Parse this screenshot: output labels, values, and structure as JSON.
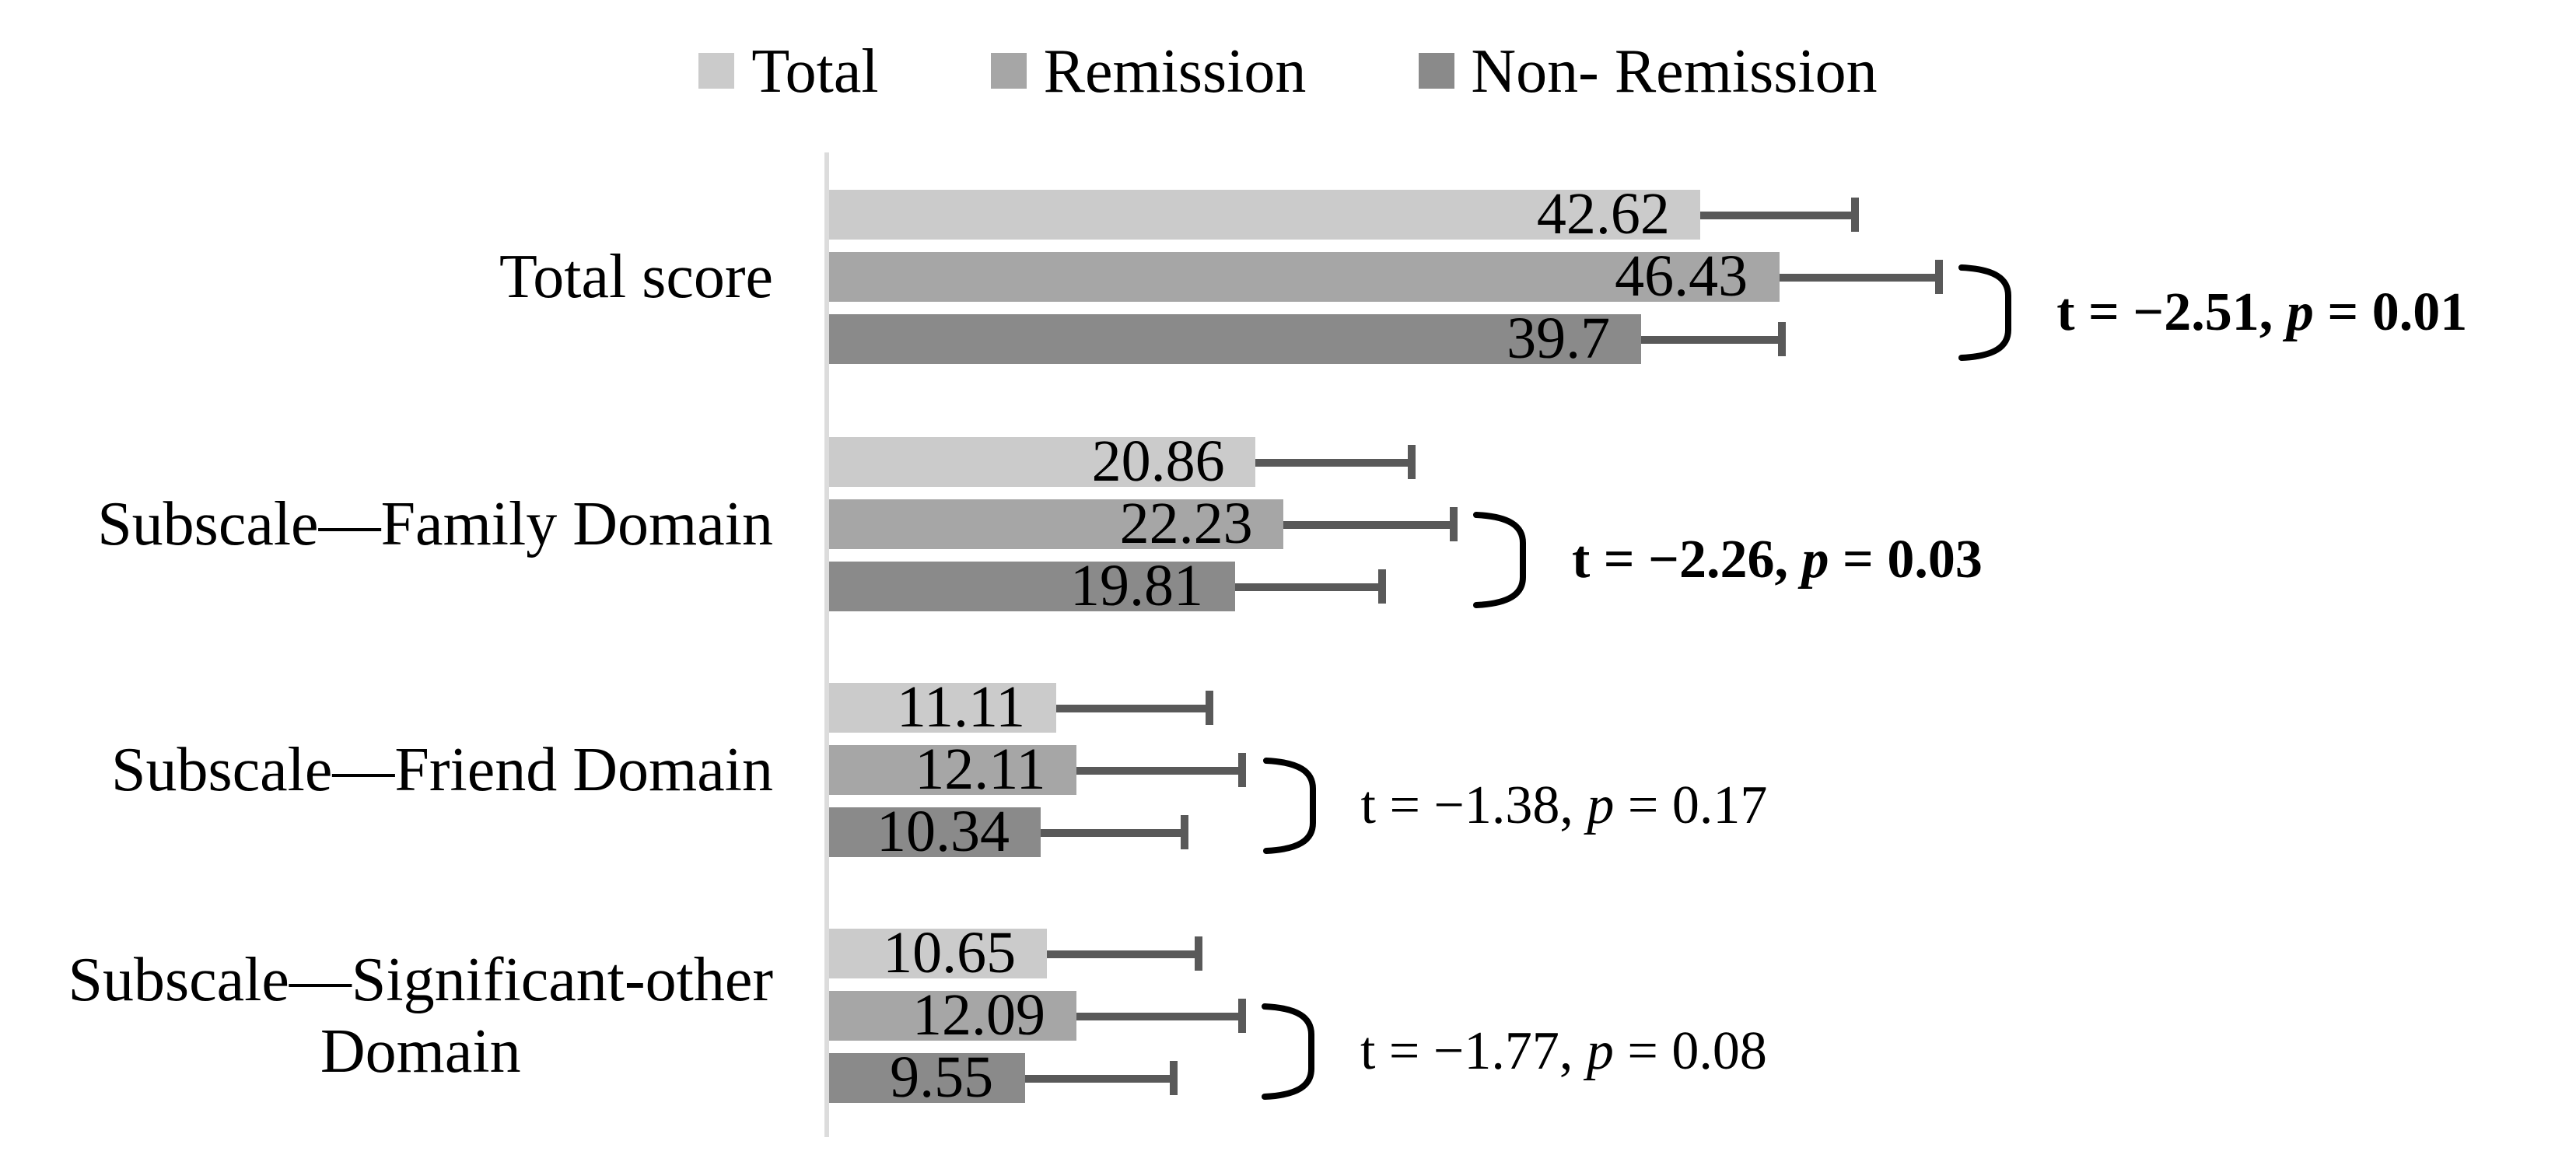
{
  "figure": {
    "background": "#ffffff",
    "axis_color": "#dcdcdc",
    "error_bar_color": "#595959",
    "bracket_color": "#000000"
  },
  "chart_data": {
    "type": "bar",
    "orientation": "horizontal",
    "title": "",
    "xlabel": "",
    "ylabel": "",
    "xlim": [
      0,
      60
    ],
    "grid": false,
    "legend_position": "top",
    "error_bars": "plus_side_only",
    "series": [
      {
        "name": "Total",
        "color": "#cbcbcb"
      },
      {
        "name": "Remission",
        "color": "#a6a6a6"
      },
      {
        "name": "Non- Remission",
        "color": "#8a8a8a"
      }
    ],
    "categories": [
      "Total score",
      "Subscale—Family Domain",
      "Subscale—Friend Domain",
      "Subscale—Significant-other Domain"
    ],
    "groups": [
      {
        "category_lines": [
          "Total score"
        ],
        "values": [
          42.62,
          46.43,
          39.7
        ],
        "labels": [
          "42.62",
          "46.43",
          "39.7"
        ],
        "errors": [
          7.5,
          7.8,
          6.9
        ],
        "stat": {
          "text": "t = −2.51, p = 0.01",
          "t": "−2.51",
          "p": "0.01",
          "bold": true
        }
      },
      {
        "category_lines": [
          "Subscale—Family Domain"
        ],
        "values": [
          20.86,
          22.23,
          19.81
        ],
        "labels": [
          "20.86",
          "22.23",
          "19.81"
        ],
        "errors": [
          7.6,
          8.3,
          7.2
        ],
        "stat": {
          "text": "t = −2.26, p = 0.03",
          "t": "−2.26",
          "p": "0.03",
          "bold": true
        }
      },
      {
        "category_lines": [
          "Subscale—Friend Domain"
        ],
        "values": [
          11.11,
          12.11,
          10.34
        ],
        "labels": [
          "11.11",
          "12.11",
          "10.34"
        ],
        "errors": [
          7.5,
          8.1,
          7.0
        ],
        "stat": {
          "text": "t = −1.38,  p = 0.17",
          "t": "−1.38",
          "p": "0.17",
          "bold": false
        }
      },
      {
        "category_lines": [
          "Subscale—Significant-other",
          "Domain"
        ],
        "values": [
          10.65,
          12.09,
          9.55
        ],
        "labels": [
          "10.65",
          "12.09",
          "9.55"
        ],
        "errors": [
          7.4,
          8.1,
          7.3
        ],
        "stat": {
          "text": "t = −1.77,  p = 0.08",
          "t": "−1.77",
          "p": "0.08",
          "bold": false
        }
      }
    ]
  }
}
